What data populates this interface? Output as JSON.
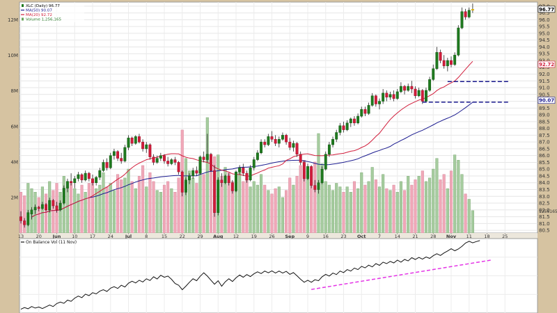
{
  "chart_data": [
    {
      "type": "candlestick",
      "title": "",
      "legend": [
        {
          "label": "XLC (Daily) 96.77",
          "color": "#000000"
        },
        {
          "label": "MA(50) 90.07",
          "color": "#1b1b8f"
        },
        {
          "label": "MA(20) 92.72",
          "color": "#d11d3b"
        },
        {
          "label": "Volume 1,256,165",
          "color": "#2f7d2f"
        }
      ],
      "legend_position": "top-left",
      "grid": true,
      "price_axis": {
        "position": "right",
        "ylim": [
          80.3,
          97.3
        ],
        "ticks": [
          "97.0",
          "96.5",
          "96.0",
          "95.5",
          "95.0",
          "94.5",
          "94.0",
          "93.5",
          "93.0",
          "92.5",
          "92.0",
          "91.5",
          "91.0",
          "90.5",
          "90.0",
          "89.5",
          "89.0",
          "88.5",
          "88.0",
          "87.5",
          "87.0",
          "86.5",
          "86.0",
          "85.5",
          "85.0",
          "84.5",
          "84.0",
          "83.5",
          "83.0",
          "82.5",
          "82.0",
          "81.5",
          "81.0",
          "80.5"
        ],
        "tick_values": [
          97.0,
          96.5,
          96.0,
          95.5,
          95.0,
          94.5,
          94.0,
          93.5,
          93.0,
          92.5,
          92.0,
          91.5,
          91.0,
          90.5,
          90.0,
          89.5,
          89.0,
          88.5,
          88.0,
          87.5,
          87.0,
          86.5,
          86.0,
          85.5,
          85.0,
          84.5,
          84.0,
          83.5,
          83.0,
          82.5,
          82.0,
          81.5,
          81.0,
          80.5
        ],
        "last_value_labels": [
          {
            "label": "96.77",
            "value": 96.77,
            "color": "#000000"
          },
          {
            "label": "92.72",
            "value": 92.72,
            "color": "#d11d3b"
          },
          {
            "label": "90.07",
            "value": 90.07,
            "color": "#1b1b8f"
          }
        ]
      },
      "volume_axis": {
        "position": "left",
        "ylim": [
          0,
          13000000
        ],
        "ticks": [
          "12M",
          "10M",
          "8M",
          "6M",
          "4M",
          "2M"
        ],
        "tick_values": [
          12000000,
          10000000,
          8000000,
          6000000,
          4000000,
          2000000
        ],
        "last_label": "1256165"
      },
      "x_axis": {
        "ticks": [
          "13",
          "20",
          "Jun",
          "10",
          "17",
          "24",
          "Jul",
          "8",
          "15",
          "22",
          "29",
          "Aug",
          "12",
          "19",
          "26",
          "Sep",
          "9",
          "16",
          "23",
          "Oct",
          "7",
          "14",
          "21",
          "28",
          "Nov",
          "11",
          "18",
          "25"
        ],
        "tick_index": [
          0,
          5,
          10,
          15,
          20,
          25,
          30,
          35,
          40,
          45,
          50,
          55,
          60,
          65,
          70,
          75,
          80,
          85,
          90,
          95,
          100,
          105,
          110,
          115,
          120,
          125,
          130,
          135
        ]
      },
      "candles": [
        [
          81.5,
          81.9,
          81.0,
          81.2,
          2.3
        ],
        [
          81.2,
          81.4,
          80.7,
          80.9,
          2.1
        ],
        [
          80.9,
          82.0,
          80.8,
          81.8,
          2.8
        ],
        [
          81.7,
          82.2,
          81.3,
          82.0,
          2.5
        ],
        [
          82.0,
          82.4,
          81.7,
          82.2,
          2.3
        ],
        [
          82.2,
          82.3,
          81.9,
          82.1,
          2.0
        ],
        [
          82.1,
          82.6,
          82.0,
          82.4,
          2.6
        ],
        [
          82.4,
          82.5,
          81.9,
          82.0,
          2.2
        ],
        [
          82.0,
          82.9,
          81.8,
          82.7,
          2.9
        ],
        [
          82.7,
          82.8,
          82.1,
          82.3,
          2.4
        ],
        [
          82.3,
          82.6,
          81.8,
          82.0,
          2.8
        ],
        [
          82.0,
          82.7,
          81.9,
          82.5,
          2.3
        ],
        [
          82.5,
          83.8,
          82.4,
          83.6,
          3.2
        ],
        [
          83.6,
          84.3,
          83.3,
          84.1,
          2.6
        ],
        [
          84.1,
          84.7,
          83.8,
          84.0,
          2.9
        ],
        [
          84.0,
          84.5,
          83.6,
          84.3,
          2.5
        ],
        [
          84.3,
          84.8,
          84.1,
          84.6,
          2.2
        ],
        [
          84.6,
          84.7,
          84.0,
          84.2,
          2.7
        ],
        [
          84.2,
          84.9,
          84.1,
          84.7,
          2.3
        ],
        [
          84.7,
          84.8,
          84.1,
          84.3,
          2.8
        ],
        [
          84.3,
          84.6,
          83.8,
          84.0,
          2.9
        ],
        [
          84.0,
          84.5,
          83.8,
          84.4,
          2.5
        ],
        [
          84.4,
          85.1,
          84.2,
          84.9,
          2.7
        ],
        [
          84.9,
          85.7,
          84.8,
          85.5,
          3.4
        ],
        [
          85.5,
          85.8,
          84.9,
          85.1,
          2.6
        ],
        [
          85.1,
          86.2,
          85.0,
          86.0,
          2.8
        ],
        [
          86.0,
          86.5,
          85.7,
          86.3,
          2.4
        ],
        [
          86.3,
          86.4,
          85.6,
          85.8,
          3.3
        ],
        [
          85.8,
          86.2,
          85.4,
          85.6,
          3.0
        ],
        [
          85.6,
          86.8,
          85.5,
          86.6,
          3.1
        ],
        [
          86.6,
          87.5,
          86.4,
          87.3,
          3.6
        ],
        [
          87.3,
          87.4,
          86.7,
          86.9,
          2.9
        ],
        [
          86.9,
          87.5,
          86.8,
          87.4,
          2.5
        ],
        [
          87.4,
          87.6,
          86.9,
          87.0,
          3.2
        ],
        [
          87.0,
          87.2,
          86.3,
          86.5,
          3.8
        ],
        [
          86.5,
          87.0,
          86.2,
          86.8,
          2.6
        ],
        [
          86.8,
          86.9,
          85.7,
          85.9,
          3.4
        ],
        [
          85.9,
          86.1,
          85.3,
          85.5,
          2.9
        ],
        [
          85.5,
          86.0,
          85.4,
          85.8,
          2.4
        ],
        [
          85.8,
          86.2,
          85.6,
          86.0,
          2.3
        ],
        [
          86.0,
          86.1,
          85.4,
          85.6,
          2.7
        ],
        [
          85.6,
          85.9,
          85.2,
          85.4,
          2.9
        ],
        [
          85.4,
          85.8,
          85.3,
          85.7,
          2.5
        ],
        [
          85.7,
          85.9,
          85.3,
          85.5,
          2.3
        ],
        [
          85.5,
          85.6,
          84.6,
          84.8,
          3.1
        ],
        [
          84.8,
          84.9,
          83.0,
          83.3,
          5.8
        ],
        [
          83.3,
          84.4,
          83.1,
          84.2,
          4.2
        ],
        [
          84.2,
          84.7,
          83.9,
          84.5,
          3.5
        ],
        [
          84.5,
          85.1,
          84.3,
          84.9,
          3.1
        ],
        [
          84.9,
          85.2,
          84.5,
          84.7,
          2.8
        ],
        [
          84.7,
          86.0,
          84.6,
          85.9,
          3.6
        ],
        [
          85.9,
          86.3,
          85.5,
          85.7,
          3.3
        ],
        [
          85.7,
          87.6,
          85.5,
          86.1,
          6.5
        ],
        [
          86.1,
          86.2,
          84.8,
          84.9,
          3.5
        ],
        [
          84.9,
          85.3,
          81.5,
          81.8,
          4.3
        ],
        [
          81.8,
          84.4,
          81.6,
          84.2,
          4.4
        ],
        [
          84.2,
          84.7,
          83.7,
          84.0,
          3.2
        ],
        [
          84.0,
          84.6,
          83.9,
          84.5,
          3.7
        ],
        [
          84.5,
          84.7,
          83.8,
          84.0,
          3.4
        ],
        [
          84.0,
          84.2,
          83.2,
          83.4,
          2.9
        ],
        [
          83.4,
          84.9,
          83.3,
          84.8,
          3.2
        ],
        [
          84.8,
          85.3,
          84.6,
          85.1,
          3.7
        ],
        [
          85.1,
          85.4,
          84.5,
          84.7,
          2.9
        ],
        [
          84.7,
          84.9,
          84.0,
          84.2,
          3.1
        ],
        [
          84.2,
          85.3,
          84.1,
          85.1,
          2.6
        ],
        [
          85.1,
          85.9,
          84.9,
          85.7,
          2.9
        ],
        [
          85.7,
          86.4,
          85.6,
          86.2,
          2.7
        ],
        [
          86.2,
          87.2,
          86.1,
          87.0,
          3.3
        ],
        [
          87.0,
          87.2,
          86.6,
          86.8,
          2.7
        ],
        [
          86.8,
          87.6,
          86.7,
          87.4,
          2.4
        ],
        [
          87.4,
          87.8,
          87.0,
          87.2,
          2.2
        ],
        [
          87.2,
          87.5,
          86.7,
          86.9,
          2.5
        ],
        [
          86.9,
          87.4,
          86.6,
          87.2,
          2.6
        ],
        [
          87.2,
          87.7,
          87.1,
          87.5,
          2.0
        ],
        [
          87.5,
          87.6,
          86.8,
          87.0,
          2.4
        ],
        [
          87.0,
          87.3,
          86.4,
          86.6,
          3.1
        ],
        [
          86.6,
          87.1,
          86.3,
          86.9,
          2.7
        ],
        [
          86.9,
          87.0,
          85.9,
          86.1,
          3.2
        ],
        [
          86.1,
          86.3,
          85.3,
          85.5,
          3.8
        ],
        [
          85.5,
          85.6,
          84.1,
          84.3,
          4.1
        ],
        [
          84.3,
          85.4,
          84.2,
          85.2,
          3.5
        ],
        [
          85.2,
          85.3,
          83.6,
          83.8,
          3.6
        ],
        [
          83.8,
          84.2,
          83.3,
          83.5,
          4.0
        ],
        [
          83.5,
          84.2,
          83.2,
          84.0,
          5.6
        ],
        [
          84.0,
          85.2,
          83.9,
          85.0,
          3.9
        ],
        [
          85.0,
          86.3,
          84.9,
          86.1,
          2.9
        ],
        [
          86.1,
          87.0,
          85.9,
          86.8,
          2.7
        ],
        [
          86.8,
          87.4,
          86.6,
          87.2,
          2.4
        ],
        [
          87.2,
          87.9,
          87.0,
          87.7,
          2.8
        ],
        [
          87.7,
          88.4,
          87.5,
          88.2,
          2.6
        ],
        [
          88.2,
          88.5,
          87.7,
          87.9,
          2.3
        ],
        [
          87.9,
          88.6,
          87.8,
          88.4,
          2.6
        ],
        [
          88.4,
          88.8,
          88.1,
          88.7,
          2.3
        ],
        [
          88.7,
          88.9,
          88.2,
          88.4,
          2.9
        ],
        [
          88.4,
          89.1,
          88.3,
          88.9,
          2.5
        ],
        [
          88.9,
          89.6,
          88.8,
          89.4,
          3.4
        ],
        [
          89.4,
          89.6,
          88.9,
          89.1,
          2.7
        ],
        [
          89.1,
          89.9,
          89.0,
          89.7,
          2.9
        ],
        [
          89.7,
          90.6,
          89.6,
          90.4,
          3.7
        ],
        [
          90.4,
          90.5,
          89.6,
          89.8,
          3.0
        ],
        [
          89.8,
          90.2,
          89.4,
          90.0,
          2.6
        ],
        [
          90.0,
          90.9,
          89.8,
          90.6,
          3.3
        ],
        [
          90.6,
          90.8,
          90.0,
          90.3,
          2.5
        ],
        [
          90.3,
          90.7,
          90.1,
          90.5,
          2.4
        ],
        [
          90.5,
          90.8,
          90.0,
          90.2,
          2.7
        ],
        [
          90.2,
          90.9,
          90.1,
          90.7,
          2.3
        ],
        [
          90.7,
          91.4,
          90.6,
          91.1,
          2.9
        ],
        [
          91.1,
          91.2,
          90.5,
          90.8,
          2.4
        ],
        [
          90.8,
          91.3,
          90.7,
          91.1,
          3.2
        ],
        [
          91.1,
          91.5,
          90.6,
          90.9,
          2.7
        ],
        [
          90.9,
          91.1,
          90.2,
          90.4,
          3.0
        ],
        [
          90.4,
          91.0,
          90.3,
          90.8,
          3.2
        ],
        [
          90.8,
          90.9,
          89.8,
          90.0,
          3.5
        ],
        [
          90.0,
          91.0,
          89.9,
          90.8,
          2.9
        ],
        [
          90.8,
          91.8,
          90.7,
          91.6,
          3.1
        ],
        [
          91.6,
          92.7,
          91.5,
          92.4,
          3.6
        ],
        [
          92.4,
          94.0,
          92.3,
          93.6,
          4.2
        ],
        [
          93.6,
          93.8,
          92.8,
          93.0,
          3.0
        ],
        [
          93.0,
          93.4,
          92.4,
          92.6,
          3.3
        ],
        [
          92.6,
          93.2,
          92.2,
          93.0,
          2.5
        ],
        [
          93.0,
          93.3,
          92.5,
          92.7,
          3.5
        ],
        [
          92.7,
          93.6,
          92.6,
          93.4,
          4.4
        ],
        [
          93.4,
          95.6,
          93.3,
          95.4,
          4.1
        ],
        [
          95.4,
          96.9,
          95.3,
          96.6,
          3.3
        ],
        [
          96.6,
          96.8,
          96.0,
          96.2,
          2.2
        ],
        [
          96.2,
          96.9,
          96.1,
          96.7,
          1.9
        ],
        [
          96.7,
          97.2,
          96.5,
          96.77,
          1.26
        ]
      ],
      "annotations": [
        {
          "type": "dashed-hline",
          "value": 91.45,
          "from_index": 119,
          "to_index": 136,
          "color": "#1b1b8f"
        },
        {
          "type": "dashed-hline",
          "value": 89.93,
          "from_index": 112,
          "to_index": 136,
          "color": "#1b1b8f"
        }
      ]
    },
    {
      "type": "line",
      "title": "",
      "legend": [
        {
          "label": "On Balance Vol (11 Nov)",
          "color": "#000000"
        }
      ],
      "legend_position": "top-left",
      "grid": true,
      "ylim": [
        -14,
        16
      ],
      "x_axis_shared": true,
      "series": [
        {
          "values": [
            -12.5,
            -11.8,
            -12.3,
            -11.4,
            -12.0,
            -11.6,
            -12.2,
            -11.5,
            -10.8,
            -11.4,
            -10.2,
            -9.6,
            -10.1,
            -8.8,
            -9.3,
            -8.0,
            -7.2,
            -7.8,
            -6.4,
            -7.0,
            -5.8,
            -6.3,
            -5.2,
            -4.6,
            -5.3,
            -4.0,
            -3.4,
            -4.1,
            -2.8,
            -3.5,
            -2.0,
            -1.2,
            -1.9,
            -0.8,
            -1.5,
            -0.2,
            -0.9,
            0.6,
            -0.3,
            1.2,
            0.4,
            0.9,
            -0.4,
            -2.1,
            -2.8,
            -4.6,
            -3.2,
            -1.6,
            -0.2,
            -1.0,
            0.8,
            2.2,
            0.9,
            -0.8,
            -2.4,
            -1.0,
            -3.2,
            -1.4,
            -0.2,
            -1.3,
            0.2,
            1.3,
            0.4,
            1.5,
            0.7,
            1.8,
            2.6,
            1.9,
            2.9,
            2.2,
            3.0,
            2.1,
            2.9,
            2.1,
            2.8,
            1.6,
            2.3,
            1.0,
            -0.4,
            -1.6,
            -0.8,
            -1.6,
            -0.6,
            -1.0,
            0.6,
            1.6,
            0.9,
            2.1,
            1.5,
            2.9,
            2.3,
            3.5,
            2.9,
            4.1,
            3.5,
            4.8,
            4.2,
            5.3,
            4.6,
            5.9,
            5.2,
            6.5,
            5.9,
            6.8,
            6.2,
            7.3,
            6.5,
            7.6,
            7.0,
            8.3,
            7.6,
            8.4,
            7.7,
            8.6,
            8.0,
            9.1,
            9.9,
            9.2,
            10.2,
            11.0,
            11.9,
            11.1,
            11.8,
            12.9,
            14.2,
            14.9,
            14.3,
            14.8,
            15.2
          ]
        },
        {
          "values": [
            -4.5,
            7.3
          ],
          "x_index": [
            81,
            131
          ],
          "color": "#e433e6",
          "style": "dashed"
        }
      ]
    }
  ]
}
